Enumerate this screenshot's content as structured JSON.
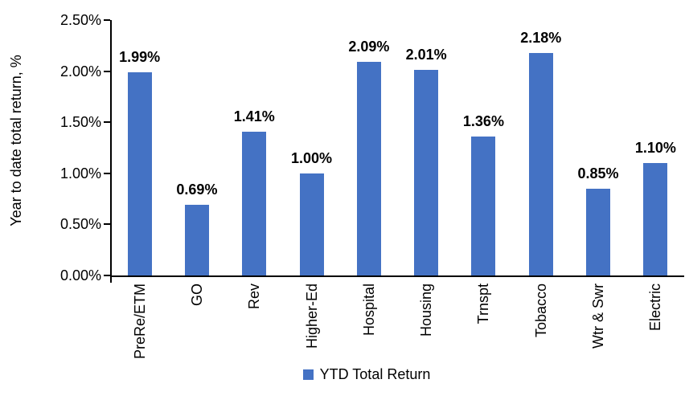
{
  "chart_data": {
    "type": "bar",
    "title": "",
    "ylabel": "Year to date total return, %",
    "xlabel": "",
    "categories": [
      "PreRe/ETM",
      "GO",
      "Rev",
      "Higher-Ed",
      "Hospital",
      "Housing",
      "Trnspt",
      "Tobacco",
      "Wtr & Swr",
      "Electric"
    ],
    "values": [
      1.99,
      0.69,
      1.41,
      1.0,
      2.09,
      2.01,
      1.36,
      2.18,
      0.85,
      1.1
    ],
    "data_labels": [
      "1.99%",
      "0.69%",
      "1.41%",
      "1.00%",
      "2.09%",
      "2.01%",
      "1.36%",
      "2.18%",
      "0.85%",
      "1.10%"
    ],
    "yticks": [
      "0.00%",
      "0.50%",
      "1.00%",
      "1.50%",
      "2.00%",
      "2.50%"
    ],
    "ylim": [
      0,
      2.5
    ],
    "grid": false,
    "legend_position": "bottom",
    "legend": [
      {
        "label": "YTD Total Return",
        "color": "#4472C4"
      }
    ],
    "bar_color": "#4472C4",
    "axis_color": "#000000",
    "text_color": "#000000"
  }
}
